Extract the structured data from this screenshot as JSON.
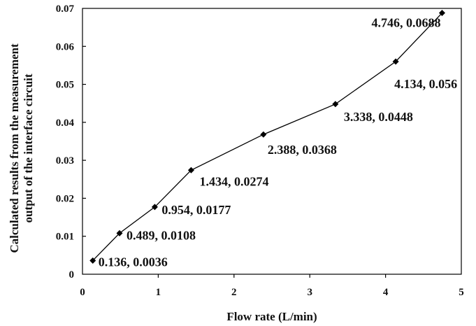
{
  "chart_data": {
    "type": "line",
    "title": "",
    "xlabel": "Flow rate (L/min)",
    "ylabel": [
      "Calculated results from the measurement",
      "output of the interface circuit"
    ],
    "xlim": [
      0,
      5
    ],
    "ylim": [
      0,
      0.07
    ],
    "x_ticks": [
      "0",
      "1",
      "2",
      "3",
      "4",
      "5"
    ],
    "y_ticks": [
      "0",
      "0.01",
      "0.02",
      "0.03",
      "0.04",
      "0.05",
      "0.06",
      "0.07"
    ],
    "grid": false,
    "legend": "none",
    "marker": "diamond",
    "line_color": "#000000",
    "series": [
      {
        "points": [
          {
            "x": 0.136,
            "y": 0.0036,
            "label": "0.136, 0.0036"
          },
          {
            "x": 0.489,
            "y": 0.0108,
            "label": "0.489, 0.0108"
          },
          {
            "x": 0.954,
            "y": 0.0177,
            "label": "0.954, 0.0177"
          },
          {
            "x": 1.434,
            "y": 0.0274,
            "label": "1.434, 0.0274"
          },
          {
            "x": 2.388,
            "y": 0.0368,
            "label": "2.388, 0.0368"
          },
          {
            "x": 3.338,
            "y": 0.0448,
            "label": "3.338, 0.0448"
          },
          {
            "x": 4.134,
            "y": 0.056,
            "label": "4.134, 0.056"
          },
          {
            "x": 4.746,
            "y": 0.0688,
            "label": "4.746, 0.0688"
          }
        ]
      }
    ]
  }
}
